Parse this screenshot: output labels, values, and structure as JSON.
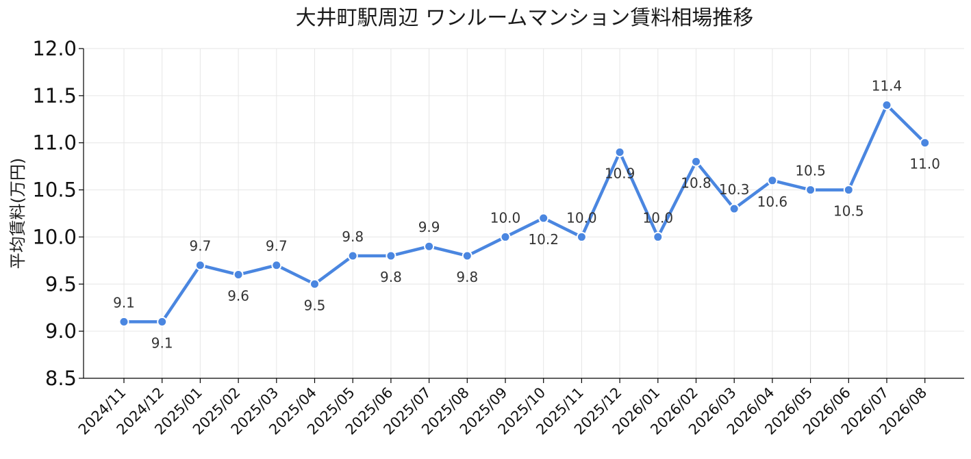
{
  "chart_data": {
    "type": "line",
    "title": "大井町駅周辺 ワンルームマンション賃料相場推移",
    "xlabel": "",
    "ylabel": "平均賃料(万円)",
    "ylim": [
      8.5,
      12.0
    ],
    "yticks": [
      "8.5",
      "9.0",
      "9.5",
      "10.0",
      "10.5",
      "11.0",
      "11.5",
      "12.0"
    ],
    "grid": true,
    "categories": [
      "2024/11",
      "2024/12",
      "2025/01",
      "2025/02",
      "2025/03",
      "2025/04",
      "2025/05",
      "2025/06",
      "2025/07",
      "2025/08",
      "2025/09",
      "2025/10",
      "2025/11",
      "2025/12",
      "2026/01",
      "2026/02",
      "2026/03",
      "2026/04",
      "2026/05",
      "2026/06",
      "2026/07",
      "2026/08"
    ],
    "series": [
      {
        "color": "#4a86e0",
        "values": [
          9.1,
          9.1,
          9.7,
          9.6,
          9.7,
          9.5,
          9.8,
          9.8,
          9.9,
          9.8,
          10.0,
          10.2,
          10.0,
          10.9,
          10.0,
          10.8,
          10.3,
          10.6,
          10.5,
          10.5,
          11.4,
          11.0
        ]
      }
    ],
    "data_labels": [
      "9.1",
      "9.1",
      "9.7",
      "9.6",
      "9.7",
      "9.5",
      "9.8",
      "9.8",
      "9.9",
      "9.8",
      "10.0",
      "10.2",
      "10.0",
      "10.9",
      "10.0",
      "10.8",
      "10.3",
      "10.6",
      "10.5",
      "10.5",
      "11.4",
      "11.0"
    ],
    "label_positions": [
      "above",
      "below",
      "above",
      "below",
      "above",
      "below",
      "above",
      "below",
      "above",
      "below",
      "above",
      "below",
      "above",
      "below",
      "above",
      "below",
      "above",
      "below",
      "above",
      "below",
      "above",
      "below"
    ]
  }
}
